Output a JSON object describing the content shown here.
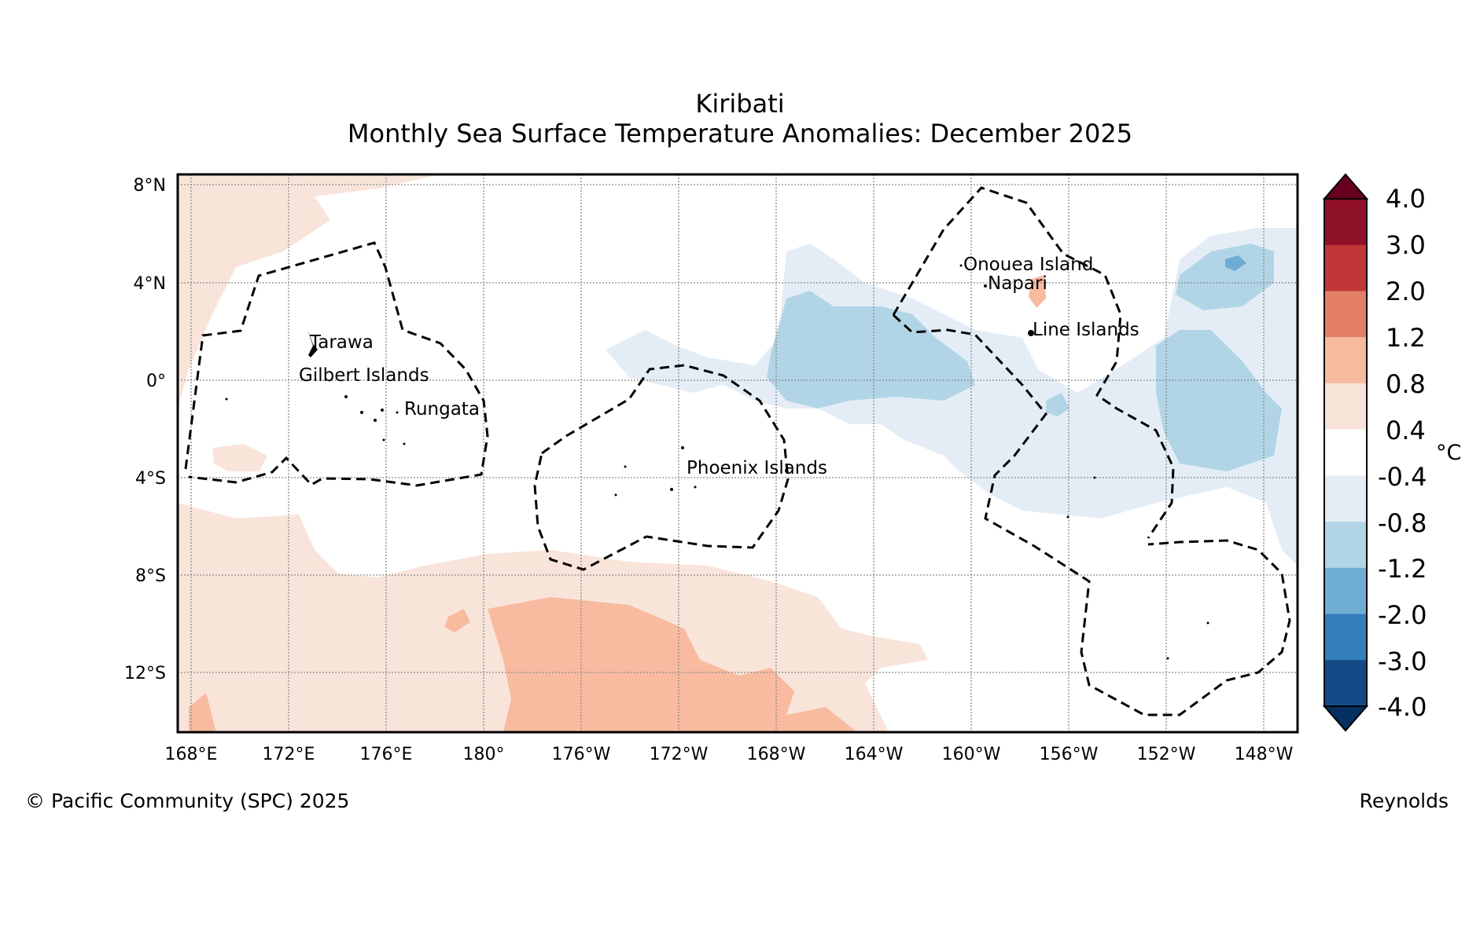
{
  "map": {
    "region": "Kiribati",
    "subtitle": "Monthly Sea Surface Temperature Anomalies: December 2025",
    "lat_ticks": [
      "8°N",
      "4°N",
      "0°",
      "4°S",
      "8°S",
      "12°S"
    ],
    "lon_ticks": [
      "168°E",
      "172°E",
      "176°E",
      "180°",
      "176°W",
      "172°W",
      "168°W",
      "164°W",
      "160°W",
      "156°W",
      "152°W",
      "148°W"
    ],
    "places": [
      "Tarawa",
      "Gilbert Islands",
      "Rungata",
      "Phoenix Islands",
      "Onouea Island",
      "Napari",
      "Line Islands"
    ],
    "colorbar": {
      "unit": "°C",
      "labels": [
        "4.0",
        "3.0",
        "2.0",
        "1.2",
        "0.8",
        "0.4",
        "-0.4",
        "-0.8",
        "-1.2",
        "-2.0",
        "-3.0",
        "-4.0"
      ],
      "colors": [
        "#67001f",
        "#8e1029",
        "#c13639",
        "#e27f66",
        "#f8bba0",
        "#f9e4da",
        "#ffffff",
        "#e4edf5",
        "#b1d5e7",
        "#6eacd3",
        "#347fbb",
        "#134b87",
        "#053061"
      ]
    },
    "anomaly_colors": {
      "warm_light": "#f9e4da",
      "warm_mid": "#f8bba0",
      "cool_light": "#e4edf5",
      "cool_mid": "#b1d5e7",
      "cool_strong": "#6eacd3"
    },
    "copyright": "© Pacific Community (SPC) 2025",
    "source": "Reynolds"
  }
}
